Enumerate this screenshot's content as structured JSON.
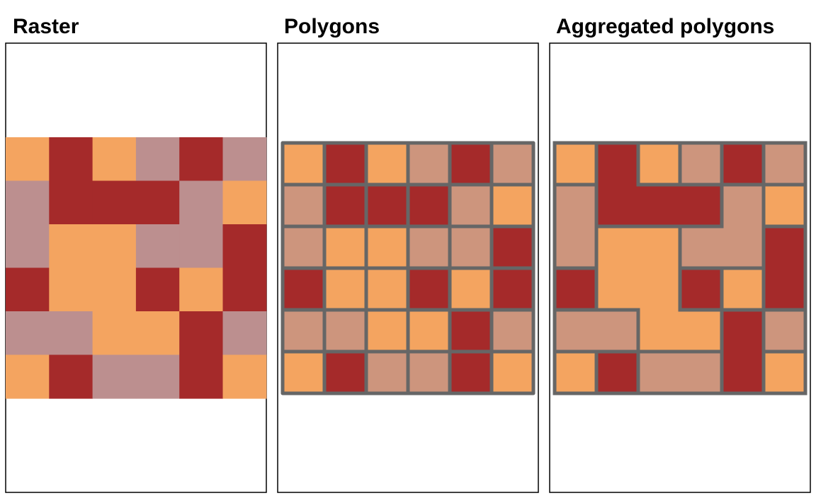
{
  "colors": {
    "light_orange": "#f4a460",
    "dark_red": "#a52a2a",
    "raster_mauve": "#bc8f8f",
    "polygon_tan": "#cd957d",
    "border_gray": "#666666",
    "frame": "#000000"
  },
  "panels": [
    {
      "title": "Raster",
      "style": "raster"
    },
    {
      "title": "Polygons",
      "style": "cells"
    },
    {
      "title": "Aggregated polygons",
      "style": "aggregated"
    }
  ],
  "grid": {
    "rows": 6,
    "cols": 6,
    "values": [
      [
        1,
        2,
        1,
        3,
        2,
        3
      ],
      [
        3,
        2,
        2,
        2,
        3,
        1
      ],
      [
        3,
        1,
        1,
        3,
        3,
        2
      ],
      [
        2,
        1,
        1,
        2,
        1,
        2
      ],
      [
        3,
        3,
        1,
        1,
        2,
        3
      ],
      [
        1,
        2,
        3,
        3,
        2,
        1
      ]
    ]
  }
}
